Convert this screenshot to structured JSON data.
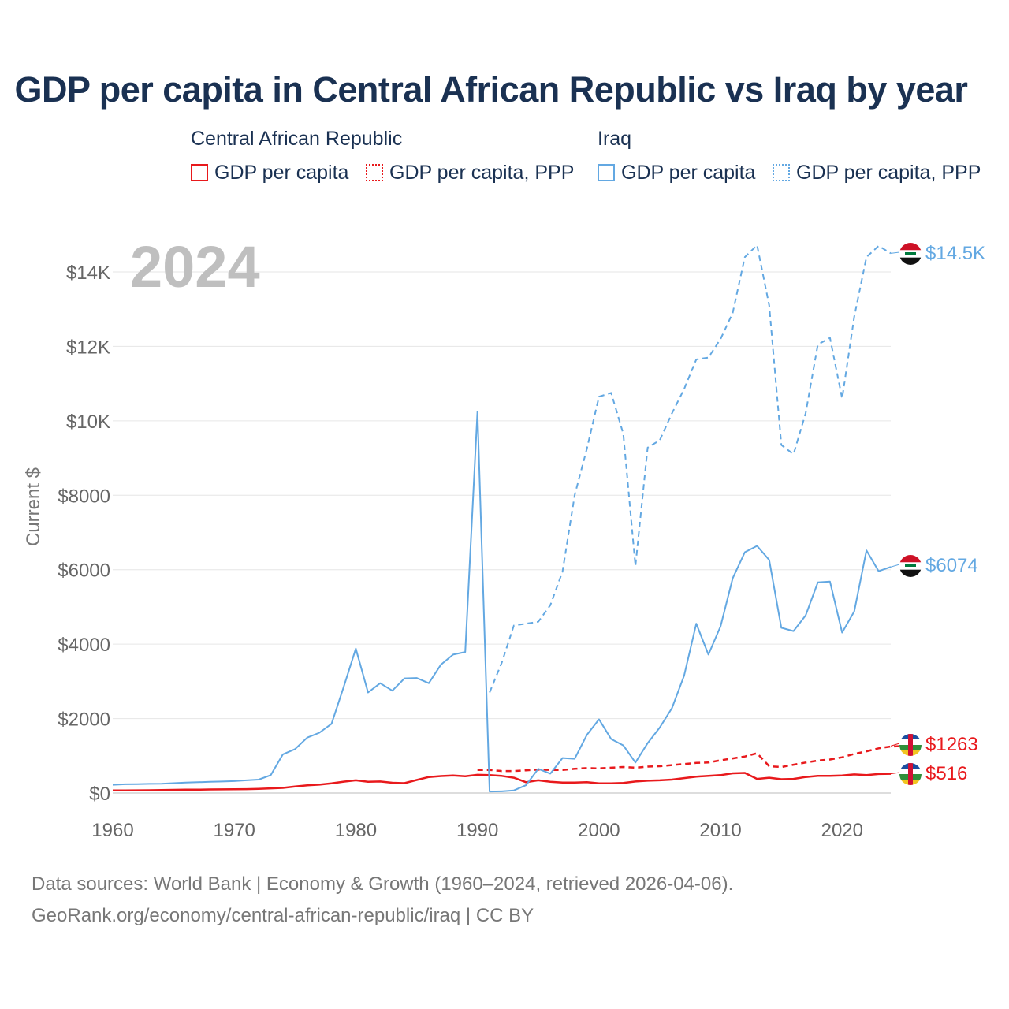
{
  "title": "GDP per capita in Central African Republic vs Iraq by year",
  "legend": {
    "groups": [
      {
        "name": "Central African Republic",
        "color": "#e8191c",
        "items": [
          "GDP per capita",
          "GDP per capita, PPP"
        ]
      },
      {
        "name": "Iraq",
        "color": "#63a8e2",
        "items": [
          "GDP per capita",
          "GDP per capita, PPP"
        ]
      }
    ]
  },
  "footer": {
    "line1": "Data sources: World Bank | Economy & Growth (1960–2024, retrieved 2026-04-06).",
    "line2": "GeoRank.org/economy/central-african-republic/iraq | CC BY"
  },
  "chart_data": {
    "type": "line",
    "year_watermark": "2024",
    "ylabel": "Current $",
    "xlim": [
      1960,
      2024
    ],
    "ylim": [
      0,
      15000
    ],
    "x_ticks": [
      1960,
      1970,
      1980,
      1990,
      2000,
      2010,
      2020
    ],
    "x_tick_labels": [
      "1960",
      "1970",
      "1980",
      "1990",
      "2000",
      "2010",
      "2020"
    ],
    "y_ticks": [
      0,
      2000,
      4000,
      6000,
      8000,
      10000,
      12000,
      14000
    ],
    "y_tick_labels": [
      "$0",
      "$2000",
      "$4000",
      "$6000",
      "$8000",
      "$10K",
      "$12K",
      "$14K"
    ],
    "series": [
      {
        "name": "Central African Republic GDP per capita",
        "country": "Central African Republic",
        "style": "solid",
        "color": "#e8191c",
        "start": 1960,
        "end_label": "$516",
        "values": [
          68,
          70,
          73,
          74,
          80,
          84,
          88,
          90,
          95,
          98,
          100,
          104,
          112,
          125,
          138,
          175,
          205,
          225,
          260,
          305,
          340,
          300,
          310,
          275,
          265,
          350,
          430,
          455,
          470,
          450,
          490,
          480,
          460,
          410,
          290,
          340,
          300,
          280,
          280,
          290,
          260,
          260,
          270,
          310,
          330,
          340,
          360,
          400,
          440,
          460,
          480,
          530,
          540,
          380,
          410,
          370,
          380,
          430,
          460,
          460,
          470,
          500,
          480,
          510,
          516
        ]
      },
      {
        "name": "Central African Republic GDP per capita, PPP",
        "country": "Central African Republic",
        "style": "dashed",
        "color": "#e8191c",
        "start": 1990,
        "end_label": "$1263",
        "values": [
          620,
          620,
          590,
          590,
          610,
          630,
          620,
          620,
          650,
          670,
          660,
          680,
          700,
          680,
          710,
          720,
          750,
          780,
          810,
          820,
          880,
          930,
          980,
          1070,
          720,
          700,
          760,
          820,
          870,
          900,
          960,
          1050,
          1120,
          1200,
          1250,
          1263
        ]
      },
      {
        "name": "Iraq GDP per capita",
        "country": "Iraq",
        "style": "solid",
        "color": "#63a8e2",
        "start": 1960,
        "end_label": "$6074",
        "values": [
          220,
          235,
          240,
          245,
          250,
          265,
          280,
          290,
          300,
          310,
          320,
          340,
          360,
          480,
          1040,
          1180,
          1490,
          1620,
          1860,
          2850,
          3880,
          2700,
          2950,
          2750,
          3080,
          3090,
          2950,
          3450,
          3720,
          3790,
          10250,
          40,
          45,
          70,
          210,
          650,
          520,
          940,
          920,
          1560,
          1980,
          1450,
          1280,
          820,
          1340,
          1760,
          2280,
          3150,
          4550,
          3720,
          4480,
          5770,
          6470,
          6640,
          6260,
          4440,
          4350,
          4770,
          5660,
          5680,
          4310,
          4880,
          6520,
          5960,
          6074
        ]
      },
      {
        "name": "Iraq GDP per capita, PPP",
        "country": "Iraq",
        "style": "dashed",
        "color": "#63a8e2",
        "start": 1991,
        "end_label": "$14.5K",
        "values": [
          2700,
          3500,
          4500,
          4550,
          4600,
          5050,
          5950,
          8000,
          9250,
          10650,
          10750,
          9650,
          6100,
          9280,
          9480,
          10200,
          10850,
          11650,
          11700,
          12200,
          12900,
          14400,
          14720,
          13100,
          9350,
          9100,
          10200,
          12050,
          12230,
          10600,
          12800,
          14400,
          14700,
          14500
        ]
      }
    ]
  }
}
